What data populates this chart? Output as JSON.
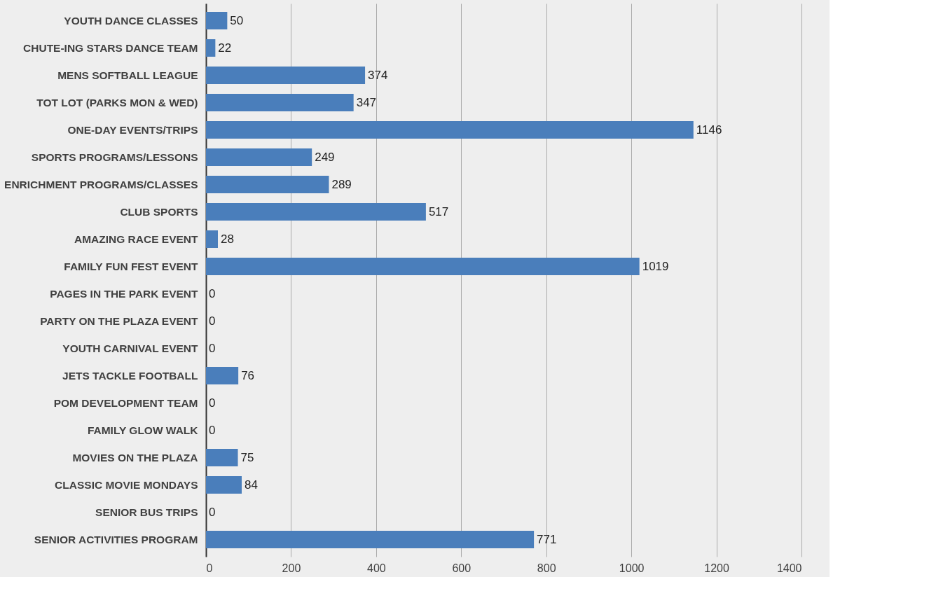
{
  "chart_data": {
    "type": "bar",
    "orientation": "horizontal",
    "categories": [
      "YOUTH DANCE CLASSES",
      "CHUTE-ING STARS DANCE TEAM",
      "MENS SOFTBALL LEAGUE",
      "TOT LOT (PARKS MON & WED)",
      "ONE-DAY EVENTS/TRIPS",
      "SPORTS PROGRAMS/LESSONS",
      "ENRICHMENT PROGRAMS/CLASSES",
      "CLUB SPORTS",
      "AMAZING RACE EVENT",
      "FAMILY FUN FEST EVENT",
      "PAGES IN THE PARK EVENT",
      "PARTY ON THE PLAZA EVENT",
      "YOUTH CARNIVAL EVENT",
      "JETS TACKLE FOOTBALL",
      "POM DEVELOPMENT TEAM",
      "FAMILY GLOW WALK",
      "MOVIES ON THE PLAZA",
      "CLASSIC MOVIE MONDAYS",
      "SENIOR BUS TRIPS",
      "SENIOR ACTIVITIES PROGRAM"
    ],
    "values": [
      50,
      22,
      374,
      347,
      1146,
      249,
      289,
      517,
      28,
      1019,
      0,
      0,
      0,
      76,
      0,
      0,
      75,
      84,
      0,
      771
    ],
    "color": "#4a7ebb",
    "xlim": [
      0,
      1400
    ],
    "xticks": [
      0,
      200,
      400,
      600,
      800,
      1000,
      1200,
      1400
    ],
    "grid": "x",
    "data_labels": true
  }
}
